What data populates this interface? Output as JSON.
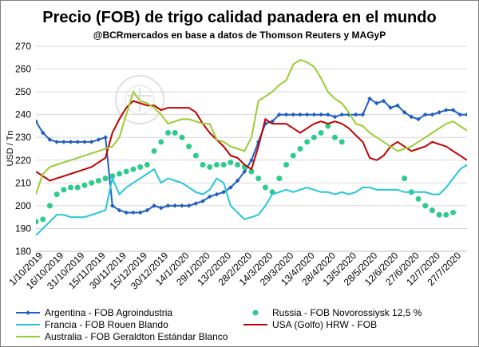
{
  "chart_data": {
    "type": "line",
    "title": "Precio (FOB) de trigo calidad panadera en el mundo",
    "subtitle": "@BCRmercados en base a datos de Thomson Reuters y MAGyP",
    "ylabel": "USD / Tn",
    "xlabel": "",
    "ylim": [
      180,
      270
    ],
    "yticks": [
      180,
      190,
      200,
      210,
      220,
      230,
      240,
      250,
      260,
      270
    ],
    "grid": true,
    "legend_position": "bottom",
    "watermark": "BOLSA DE COMERCIO DE ROSARIO",
    "x_tick_labels": [
      "1/10/2019",
      "16/10/2019",
      "31/10/2019",
      "15/11/2019",
      "30/11/2019",
      "15/12/2019",
      "30/12/2019",
      "14/1/2020",
      "29/1/2020",
      "13/2/2020",
      "28/2/2020",
      "14/3/2020",
      "29/3/2020",
      "13/4/2020",
      "28/4/2020",
      "13/5/2020",
      "28/5/2020",
      "12/6/2020",
      "27/6/2020",
      "12/7/2020",
      "27/7/2020"
    ],
    "x_index": [
      0,
      5,
      10,
      15,
      20,
      25,
      30,
      35,
      40,
      45,
      50,
      55,
      60,
      65,
      70,
      75,
      80,
      85,
      90,
      95,
      100,
      105,
      110,
      115,
      120,
      125,
      130,
      135,
      140,
      145,
      150,
      155,
      160,
      165,
      170,
      175,
      180,
      185,
      190,
      195,
      200,
      205,
      210,
      215,
      220,
      225,
      230,
      235,
      240,
      245,
      250,
      255,
      260,
      265,
      270,
      275,
      280,
      285,
      290,
      295,
      300,
      305,
      310
    ],
    "series": [
      {
        "name": "Argentina - FOB Agroindustria",
        "color": "#1f5fc0",
        "style": "line-diamond",
        "values": [
          237,
          232,
          229,
          228,
          228,
          228,
          228,
          228,
          228,
          229,
          230,
          200,
          198,
          197,
          197,
          197,
          198,
          200,
          199,
          200,
          200,
          200,
          200,
          201,
          202,
          204,
          205,
          206,
          208,
          211,
          215,
          220,
          228,
          236,
          237,
          240,
          240,
          240,
          240,
          240,
          240,
          240,
          240,
          239,
          240,
          240,
          240,
          240,
          247,
          245,
          246,
          243,
          244,
          241,
          239,
          238,
          240,
          240,
          241,
          242,
          242,
          240,
          240
        ]
      },
      {
        "name": "Russia - FOB Novorossiysk 12,5 %",
        "color": "#2ecc8c",
        "style": "dots",
        "values": [
          193,
          194,
          200,
          205,
          207,
          208,
          208,
          209,
          210,
          211,
          212,
          213,
          214,
          215,
          216,
          217,
          218,
          224,
          228,
          232,
          232,
          230,
          226,
          222,
          218,
          217,
          218,
          218,
          219,
          218,
          217,
          215,
          212,
          208,
          206,
          212,
          218,
          222,
          225,
          228,
          230,
          232,
          235,
          230,
          228,
          null,
          null,
          null,
          null,
          null,
          null,
          null,
          null,
          212,
          206,
          203,
          200,
          198,
          196,
          196,
          197,
          null,
          null
        ]
      },
      {
        "name": "Francia - FOB Rouen Blando",
        "color": "#26c6da",
        "style": "line",
        "values": [
          187,
          190,
          193,
          196,
          196,
          195,
          195,
          195,
          196,
          197,
          198,
          212,
          205,
          208,
          210,
          212,
          214,
          216,
          210,
          212,
          211,
          210,
          208,
          206,
          205,
          207,
          212,
          210,
          200,
          197,
          194,
          195,
          196,
          200,
          205,
          206,
          207,
          206,
          207,
          208,
          207,
          206,
          206,
          205,
          206,
          205,
          206,
          208,
          208,
          207,
          207,
          207,
          207,
          206,
          206,
          206,
          206,
          205,
          205,
          208,
          212,
          216,
          218
        ]
      },
      {
        "name": "USA (Golfo) HRW - FOB",
        "color": "#c00000",
        "style": "line",
        "values": [
          215,
          213,
          211,
          212,
          213,
          214,
          215,
          216,
          217,
          219,
          221,
          232,
          238,
          243,
          246,
          245,
          244,
          244,
          242,
          243,
          243,
          243,
          243,
          241,
          236,
          232,
          229,
          226,
          222,
          221,
          218,
          216,
          226,
          238,
          236,
          236,
          236,
          234,
          232,
          234,
          236,
          237,
          236,
          237,
          236,
          234,
          231,
          228,
          221,
          220,
          222,
          226,
          228,
          226,
          224,
          225,
          226,
          228,
          227,
          226,
          224,
          222,
          220
        ]
      },
      {
        "name": "Australia - FOB Geraldton Estándar Blanco",
        "color": "#9acd32",
        "style": "line",
        "values": [
          205,
          214,
          217,
          218,
          219,
          220,
          221,
          222,
          223,
          224,
          225,
          226,
          230,
          240,
          250,
          246,
          245,
          243,
          240,
          236,
          237,
          238,
          238,
          237,
          236,
          236,
          229,
          228,
          226,
          225,
          224,
          230,
          246,
          248,
          250,
          253,
          255,
          262,
          264,
          263,
          261,
          256,
          250,
          247,
          245,
          241,
          236,
          235,
          232,
          230,
          228,
          226,
          224,
          225,
          226,
          228,
          230,
          232,
          234,
          236,
          237,
          235,
          233
        ]
      }
    ]
  }
}
